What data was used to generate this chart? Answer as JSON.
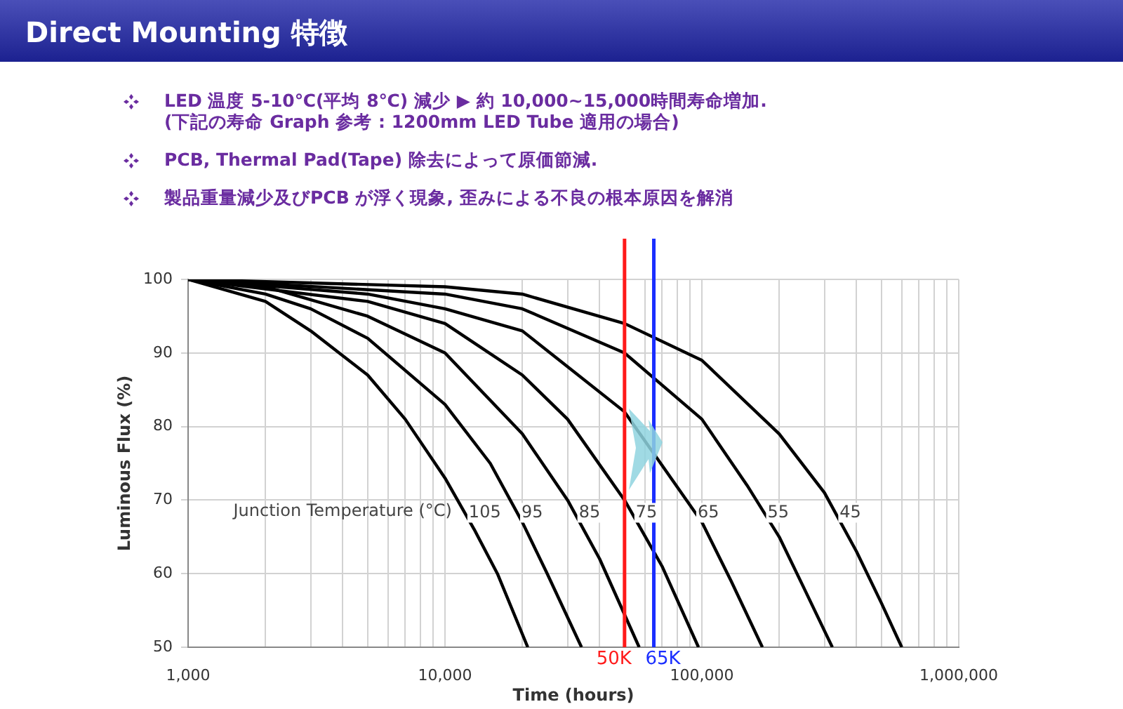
{
  "chart_data": {
    "type": "line",
    "title": "Direct Mounting 特徴",
    "annotations": [
      "LED 温度 5-10℃(平均 8℃) 減少 ▶ 約 10,000~15,000時間寿命増加.\n(下記の寿命 Graph 参考 : 1200mm LED Tube 適用の場合)",
      "PCB, Thermal Pad(Tape) 除去によって原価節減.",
      "製品重量減少及びPCB が浮く現象, 歪みによる不良の根本原因を解消"
    ],
    "xlabel": "Time (hours)",
    "ylabel": "Luminous Flux (%)",
    "legend_title": "Junction Temperature (°C)",
    "log": "x",
    "grid": true,
    "legend": false,
    "marker": "none",
    "line_style": "solid",
    "xlim": [
      1000,
      1000000
    ],
    "ylim": [
      50,
      100
    ],
    "xticks": [
      {
        "value": 1000,
        "label": "1,000"
      },
      {
        "value": 2000,
        "label": null
      },
      {
        "value": 3000,
        "label": null
      },
      {
        "value": 4000,
        "label": null
      },
      {
        "value": 5000,
        "label": null
      },
      {
        "value": 6000,
        "label": null
      },
      {
        "value": 7000,
        "label": null
      },
      {
        "value": 8000,
        "label": null
      },
      {
        "value": 9000,
        "label": null
      },
      {
        "value": 10000,
        "label": "10,000"
      },
      {
        "value": 20000,
        "label": null
      },
      {
        "value": 30000,
        "label": null
      },
      {
        "value": 40000,
        "label": null
      },
      {
        "value": 50000,
        "label": null
      },
      {
        "value": 60000,
        "label": null
      },
      {
        "value": 70000,
        "label": null
      },
      {
        "value": 80000,
        "label": null
      },
      {
        "value": 90000,
        "label": null
      },
      {
        "value": 100000,
        "label": "100,000"
      },
      {
        "value": 200000,
        "label": null
      },
      {
        "value": 300000,
        "label": null
      },
      {
        "value": 400000,
        "label": null
      },
      {
        "value": 500000,
        "label": null
      },
      {
        "value": 600000,
        "label": null
      },
      {
        "value": 700000,
        "label": null
      },
      {
        "value": 800000,
        "label": null
      },
      {
        "value": 900000,
        "label": null
      },
      {
        "value": 1000000,
        "label": "1,000,000"
      }
    ],
    "yticks": [
      50,
      60,
      70,
      80,
      90,
      100
    ],
    "series": [
      {
        "name": "105",
        "color": "#000000",
        "x": [
          1000,
          2000,
          3000,
          5000,
          7000,
          10000,
          13000,
          16000,
          21000
        ],
        "values": [
          100,
          97,
          93,
          87,
          81,
          73,
          66,
          60,
          50
        ]
      },
      {
        "name": "95",
        "color": "#000000",
        "x": [
          1000,
          2000,
          3000,
          5000,
          10000,
          15000,
          20000,
          25000,
          34000
        ],
        "values": [
          100,
          98,
          96,
          92,
          83,
          75,
          67,
          60,
          50
        ]
      },
      {
        "name": "85",
        "color": "#000000",
        "x": [
          1000,
          2000,
          5000,
          10000,
          20000,
          30000,
          40000,
          57000
        ],
        "values": [
          100,
          99,
          95,
          90,
          79,
          70,
          62,
          50
        ]
      },
      {
        "name": "75",
        "color": "#000000",
        "x": [
          1000,
          5000,
          10000,
          20000,
          30000,
          50000,
          70000,
          97000
        ],
        "values": [
          100,
          97,
          94,
          87,
          81,
          70,
          61,
          50
        ]
      },
      {
        "name": "65",
        "color": "#000000",
        "x": [
          1000,
          5000,
          10000,
          20000,
          50000,
          100000,
          130000,
          172000
        ],
        "values": [
          100,
          98,
          96,
          93,
          82,
          67,
          59,
          50
        ]
      },
      {
        "name": "55",
        "color": "#000000",
        "x": [
          1000,
          10000,
          20000,
          50000,
          100000,
          150000,
          200000,
          250000,
          322000
        ],
        "values": [
          100,
          98,
          96,
          90,
          81,
          72,
          65,
          58,
          50
        ]
      },
      {
        "name": "45",
        "color": "#000000",
        "x": [
          1000,
          10000,
          20000,
          50000,
          100000,
          200000,
          300000,
          400000,
          500000,
          600000
        ],
        "values": [
          100,
          99,
          98,
          94,
          89,
          79,
          71,
          63,
          56,
          50
        ]
      }
    ],
    "ref_lines": [
      {
        "axis": "x",
        "value": 50000,
        "label": "50K",
        "color": "#ff1a1a"
      },
      {
        "axis": "x",
        "value": 65000,
        "label": "65K",
        "color": "#1a2eff"
      }
    ]
  }
}
